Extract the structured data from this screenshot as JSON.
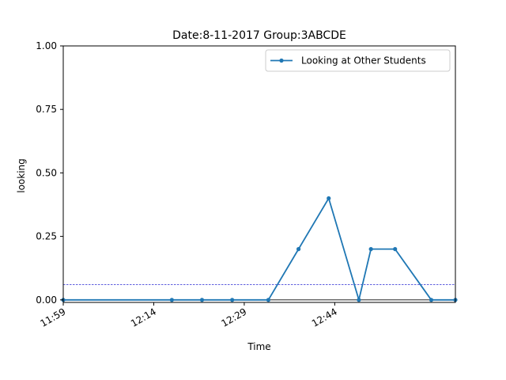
{
  "chart_data": {
    "type": "line",
    "title": "Date:8-11-2017  Group:3ABCDE",
    "xlabel": "Time",
    "ylabel": "looking",
    "x_unit": "time",
    "x_ticks": [
      "11:59",
      "12:14",
      "12:29",
      "12:44"
    ],
    "xlim": [
      "11:59",
      "13:04"
    ],
    "ylim": [
      -0.01,
      1.0
    ],
    "y_ticks": [
      "0.00",
      "0.25",
      "0.50",
      "0.75",
      "1.00"
    ],
    "legend_position": "top-right",
    "grid": false,
    "reference_lines": [
      {
        "y": 0.06,
        "style": "dashed",
        "color": "#0000cc"
      },
      {
        "y": 0.0,
        "style": "solid",
        "color": "#000000"
      }
    ],
    "series": [
      {
        "name": "Looking at Other Students",
        "color": "#1f77b4",
        "marker": "circle",
        "points": [
          {
            "x": "11:59",
            "y": 0.0
          },
          {
            "x": "12:17",
            "y": 0.0
          },
          {
            "x": "12:22",
            "y": 0.0
          },
          {
            "x": "12:27",
            "y": 0.0
          },
          {
            "x": "12:33",
            "y": 0.0
          },
          {
            "x": "12:38",
            "y": 0.2
          },
          {
            "x": "12:43",
            "y": 0.4
          },
          {
            "x": "12:48",
            "y": 0.0
          },
          {
            "x": "12:50",
            "y": 0.2
          },
          {
            "x": "12:54",
            "y": 0.2
          },
          {
            "x": "13:00",
            "y": 0.0
          },
          {
            "x": "13:04",
            "y": 0.0
          }
        ]
      }
    ]
  }
}
